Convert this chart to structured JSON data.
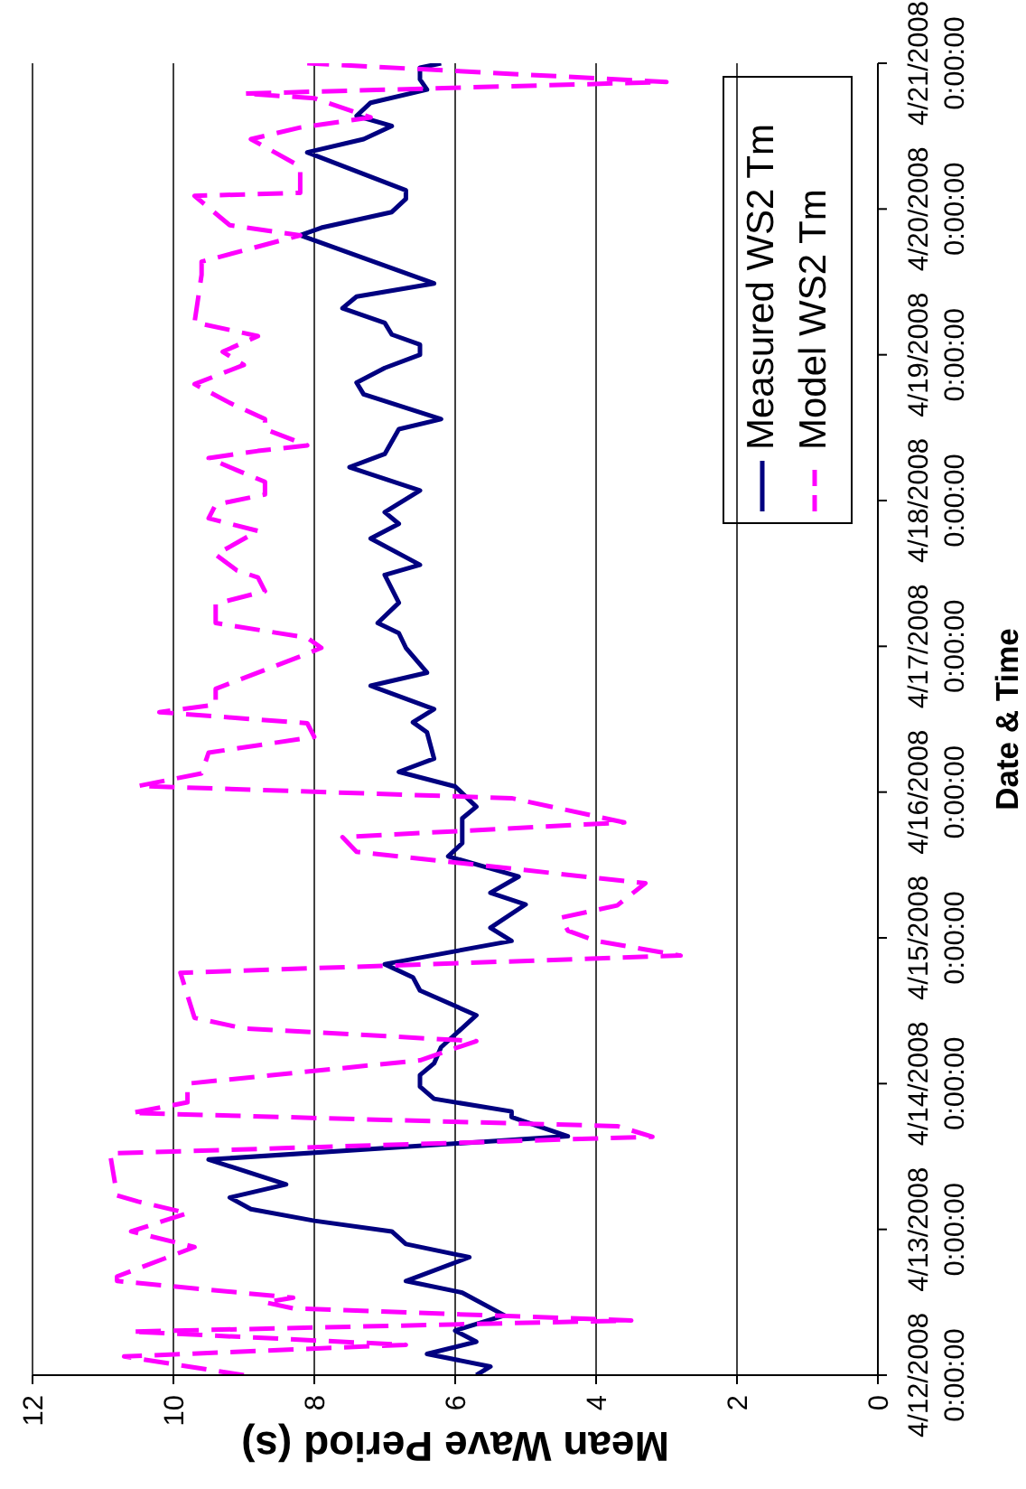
{
  "chart_data": {
    "type": "line",
    "orientation": "horizontal",
    "xlabel": "Mean Wave Period (s)",
    "ylabel": "Date & Time",
    "xlim": [
      12,
      0
    ],
    "xticks": [
      12,
      10,
      8,
      6,
      4,
      2,
      0
    ],
    "ylim": [
      "2008-04-12",
      "2008-04-21"
    ],
    "yticks": [
      {
        "value": "2008-04-12",
        "label": "4/12/2008 0:00:00"
      },
      {
        "value": "2008-04-13",
        "label": "4/13/2008 0:00:00"
      },
      {
        "value": "2008-04-14",
        "label": "4/14/2008 0:00:00"
      },
      {
        "value": "2008-04-15",
        "label": "4/15/2008 0:00:00"
      },
      {
        "value": "2008-04-16",
        "label": "4/16/2008 0:00:00"
      },
      {
        "value": "2008-04-17",
        "label": "4/17/2008 0:00:00"
      },
      {
        "value": "2008-04-18",
        "label": "4/18/2008 0:00:00"
      },
      {
        "value": "2008-04-19",
        "label": "4/19/2008 0:00:00"
      },
      {
        "value": "2008-04-20",
        "label": "4/20/2008 0:00:00"
      },
      {
        "value": "2008-04-21",
        "label": "4/21/2008 0:00:00"
      }
    ],
    "grid": "x",
    "legend": "top right",
    "marker": "none",
    "series": [
      {
        "name": "Measured WS2 Tm",
        "color": "#000080",
        "line_style": "solid",
        "x": [
          "2008-04-12T00:00",
          "2008-04-12T01:25",
          "2008-04-12T03:30",
          "2008-04-12T05:30",
          "2008-04-12T07:20",
          "2008-04-12T09:50",
          "2008-04-12T13:35",
          "2008-04-12T15:30",
          "2008-04-12T19:25",
          "2008-04-12T21:35",
          "2008-04-12T23:40",
          "2008-04-13T01:25",
          "2008-04-13T03:20",
          "2008-04-13T05:15",
          "2008-04-13T07:25",
          "2008-04-13T11:30",
          "2008-04-13T15:20",
          "2008-04-13T18:30",
          "2008-04-13T19:25",
          "2008-04-13T21:30",
          "2008-04-13T23:30",
          "2008-04-14T01:25",
          "2008-04-14T03:20",
          "2008-04-14T06:00",
          "2008-04-14T11:15",
          "2008-04-14T15:20",
          "2008-04-14T17:30",
          "2008-04-14T19:40",
          "2008-04-14T23:30",
          "2008-04-15T01:40",
          "2008-04-15T05:30",
          "2008-04-15T07:25",
          "2008-04-15T10:05",
          "2008-04-15T13:25",
          "2008-04-15T15:35",
          "2008-04-15T19:40",
          "2008-04-15T21:35",
          "2008-04-16T00:55",
          "2008-04-16T03:20",
          "2008-04-16T05:30",
          "2008-04-16T09:50",
          "2008-04-16T11:30",
          "2008-04-16T13:40",
          "2008-04-16T17:30",
          "2008-04-16T19:40",
          "2008-04-16T23:45",
          "2008-04-17T02:10",
          "2008-04-17T03:50",
          "2008-04-17T07:10",
          "2008-04-17T11:45",
          "2008-04-17T13:25",
          "2008-04-17T17:45",
          "2008-04-17T20:10",
          "2008-04-17T22:05",
          "2008-04-18T01:40",
          "2008-04-18T05:30",
          "2008-04-18T07:40",
          "2008-04-18T11:45",
          "2008-04-18T13:25",
          "2008-04-18T17:30",
          "2008-04-18T19:25",
          "2008-04-18T21:50",
          "2008-04-19T00:00",
          "2008-04-19T01:40",
          "2008-04-19T03:20",
          "2008-04-19T05:15",
          "2008-04-19T07:40",
          "2008-04-19T09:35",
          "2008-04-19T11:45",
          "2008-04-19T19:40",
          "2008-04-19T20:55",
          "2008-04-19T23:30",
          "2008-04-20T01:40",
          "2008-04-20T03:05",
          "2008-04-20T09:20",
          "2008-04-20T11:30",
          "2008-04-20T13:40",
          "2008-04-20T15:20",
          "2008-04-20T17:30",
          "2008-04-20T19:40",
          "2008-04-20T21:20",
          "2008-04-20T23:15",
          "2008-04-21T00:00"
        ],
        "values": [
          5.7,
          5.5,
          6.4,
          5.7,
          6.0,
          5.3,
          5.9,
          6.7,
          5.8,
          6.7,
          6.9,
          8.0,
          8.9,
          9.2,
          8.4,
          9.5,
          4.4,
          5.2,
          5.2,
          6.3,
          6.5,
          6.5,
          6.3,
          6.2,
          5.7,
          6.5,
          6.6,
          7.0,
          5.2,
          5.5,
          5.0,
          5.5,
          5.1,
          6.1,
          5.9,
          5.9,
          5.7,
          6.0,
          6.8,
          6.3,
          6.4,
          6.6,
          6.3,
          7.2,
          6.4,
          6.7,
          6.8,
          7.1,
          6.8,
          7.0,
          6.5,
          7.2,
          6.8,
          7.0,
          6.5,
          7.5,
          7.0,
          6.8,
          6.2,
          7.3,
          7.4,
          7.0,
          6.5,
          6.5,
          6.9,
          7.0,
          7.6,
          7.4,
          6.3,
          8.2,
          7.9,
          6.9,
          6.7,
          6.7,
          8.1,
          7.3,
          6.9,
          7.4,
          7.2,
          6.4,
          6.5,
          6.5,
          6.2
        ]
      },
      {
        "name": "Model WS2 Tm",
        "color": "#ff00ff",
        "line_style": "dashed",
        "x": [
          "2008-04-12T00:00",
          "2008-04-12T03:05",
          "2008-04-12T05:00",
          "2008-04-12T07:10",
          "2008-04-12T09:00",
          "2008-04-12T11:00",
          "2008-04-12T12:00",
          "2008-04-12T12:45",
          "2008-04-12T15:30",
          "2008-04-12T16:15",
          "2008-04-12T21:05",
          "2008-04-12T23:40",
          "2008-04-13T02:40",
          "2008-04-13T04:35",
          "2008-04-13T05:35",
          "2008-04-13T12:30",
          "2008-04-13T15:15",
          "2008-04-13T17:00",
          "2008-04-13T19:10",
          "2008-04-13T20:55",
          "2008-04-14T00:00",
          "2008-04-14T03:50",
          "2008-04-14T07:00",
          "2008-04-14T09:05",
          "2008-04-14T10:50",
          "2008-04-14T18:15",
          "2008-04-14T21:05",
          "2008-04-14T23:30",
          "2008-04-15T01:10",
          "2008-04-15T03:20",
          "2008-04-15T05:20",
          "2008-04-15T09:00",
          "2008-04-15T14:10",
          "2008-04-15T16:35",
          "2008-04-15T19:00",
          "2008-04-15T23:00",
          "2008-04-16T01:00",
          "2008-04-16T03:05",
          "2008-04-16T06:30",
          "2008-04-16T09:05",
          "2008-04-16T11:20",
          "2008-04-16T13:10",
          "2008-04-16T14:25",
          "2008-04-16T17:00",
          "2008-04-16T22:20",
          "2008-04-16T23:45",
          "2008-04-17T01:25",
          "2008-04-17T03:50",
          "2008-04-17T07:00",
          "2008-04-17T09:05",
          "2008-04-17T11:20",
          "2008-04-17T12:30",
          "2008-04-17T15:05",
          "2008-04-17T19:00",
          "2008-04-17T21:05",
          "2008-04-17T23:20",
          "2008-04-18T01:00",
          "2008-04-18T03:05",
          "2008-04-18T05:00",
          "2008-04-18T07:00",
          "2008-04-18T08:10",
          "2008-04-18T09:05",
          "2008-04-18T11:45",
          "2008-04-18T13:25",
          "2008-04-18T16:05",
          "2008-04-18T19:10",
          "2008-04-18T22:20",
          "2008-04-19T00:30",
          "2008-04-19T03:05",
          "2008-04-19T05:20",
          "2008-04-19T13:10",
          "2008-04-19T15:20",
          "2008-04-19T19:40",
          "2008-04-19T21:20",
          "2008-04-20T02:10",
          "2008-04-20T02:40",
          "2008-04-20T07:00",
          "2008-04-20T11:30",
          "2008-04-20T13:25",
          "2008-04-20T15:05",
          "2008-04-20T18:15",
          "2008-04-20T19:00",
          "2008-04-20T20:55",
          "2008-04-21T00:00"
        ],
        "values": [
          9.0,
          10.7,
          6.7,
          10.6,
          3.5,
          8.3,
          8.7,
          8.3,
          10.8,
          10.8,
          9.7,
          10.6,
          9.8,
          10.5,
          10.8,
          10.9,
          3.2,
          3.7,
          10.6,
          9.8,
          9.8,
          6.5,
          5.7,
          9.0,
          9.7,
          9.9,
          2.8,
          4.0,
          4.4,
          4.5,
          3.7,
          3.3,
          7.4,
          7.6,
          3.6,
          5.2,
          10.5,
          9.6,
          9.5,
          8.0,
          8.1,
          10.2,
          9.4,
          9.4,
          8.2,
          7.9,
          8.1,
          9.4,
          9.4,
          8.7,
          8.8,
          9.1,
          9.4,
          8.8,
          9.5,
          9.4,
          8.7,
          8.7,
          9.1,
          9.5,
          8.8,
          8.1,
          8.7,
          8.7,
          9.2,
          9.7,
          9.0,
          9.3,
          8.8,
          9.7,
          9.6,
          9.6,
          8.2,
          9.2,
          9.7,
          8.2,
          8.2,
          8.9,
          8.2,
          7.2,
          8.0,
          9.0,
          3.0,
          8.1
        ]
      }
    ]
  }
}
